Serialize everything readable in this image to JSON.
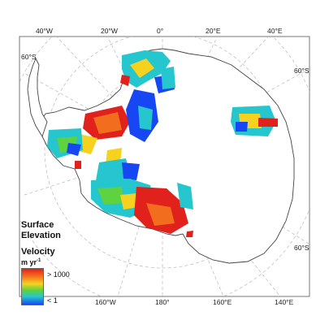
{
  "tick_labels": {
    "top": [
      "40°W",
      "20°W",
      "0°",
      "20°E",
      "40°E"
    ],
    "bottom": [
      "160°W",
      "180°",
      "160°E",
      "140°E"
    ],
    "left": [
      "60°S"
    ],
    "right": [
      "60°S",
      "60°S"
    ]
  },
  "legend": {
    "title_line1": "Surface",
    "title_line2": "Elevation",
    "velocity_label": "Velocity",
    "unit_base": "m yr",
    "unit_exponent": "-1",
    "max_label": "> 1000",
    "min_label": "< 1",
    "colors": [
      "#e0211c",
      "#f36d1e",
      "#f6d21f",
      "#5ed33f",
      "#26c6cf",
      "#1747f2"
    ]
  },
  "map_style": {
    "graticule_color": "#b8b8b8",
    "coastline_color": "#444444"
  }
}
